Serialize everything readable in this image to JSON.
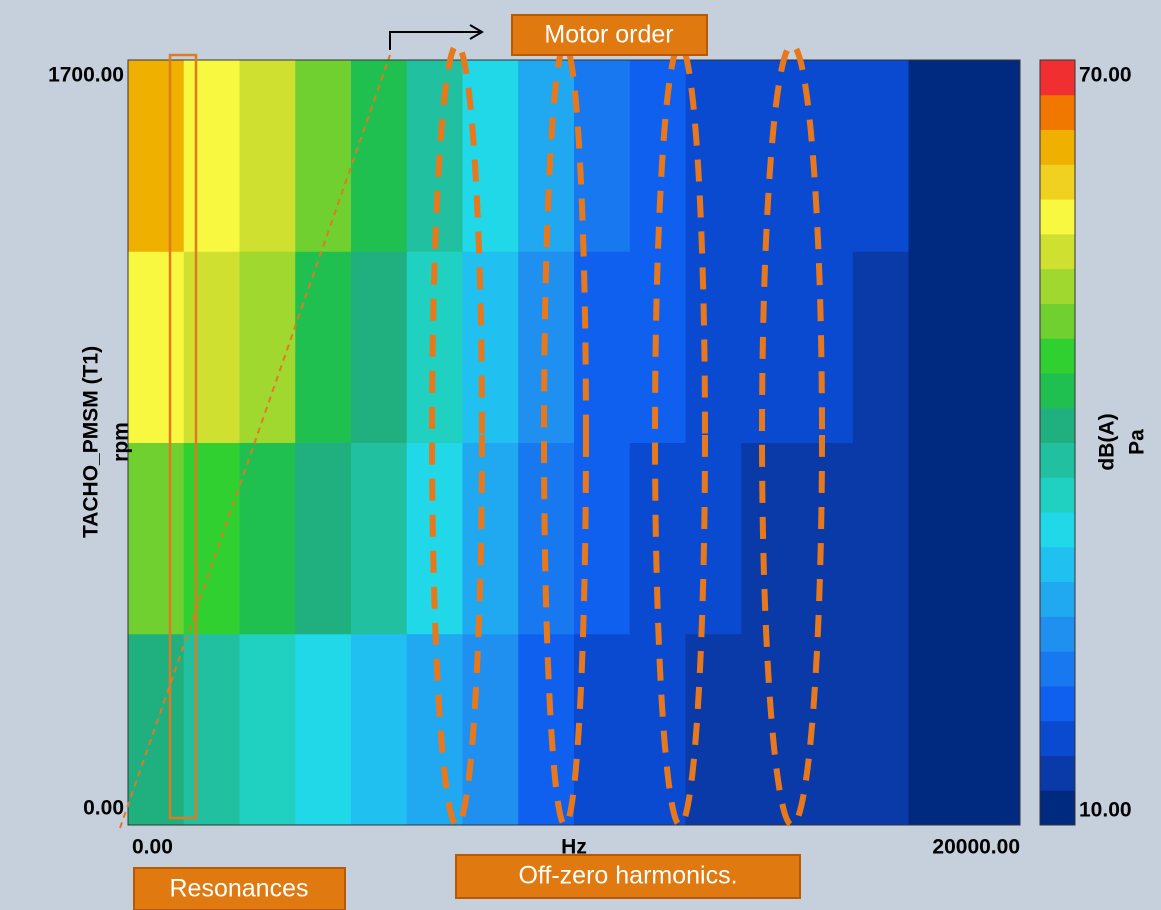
{
  "chart_data": {
    "type": "heatmap",
    "x_label": "Hz",
    "y_label": "TACHO_PMSM (T1)",
    "y_unit": "rpm",
    "colorbar_label": "dB(A)",
    "colorbar_unit": "Pa",
    "xlim": [
      0,
      20000
    ],
    "xticks": [
      {
        "value": 0,
        "label": "0.00"
      },
      {
        "value": 20000,
        "label": "20000.00"
      }
    ],
    "ylim": [
      0,
      1700
    ],
    "yticks": [
      {
        "value": 0,
        "label": "0.00"
      },
      {
        "value": 1700,
        "label": "1700.00"
      }
    ],
    "zlim": [
      10,
      70
    ],
    "zticks": [
      {
        "value": 10,
        "label": "10.00"
      },
      {
        "value": 70,
        "label": "70.00"
      }
    ],
    "colors": [
      "#002a80",
      "#0a3aa8",
      "#0a4ad0",
      "#1060f0",
      "#1878f0",
      "#1f90f0",
      "#20a8f0",
      "#20c0f0",
      "#20d8e8",
      "#20d0c0",
      "#20c0a0",
      "#20b080",
      "#20c050",
      "#30d030",
      "#70d030",
      "#a0d830",
      "#d0e030",
      "#f8f840",
      "#f0d020",
      "#f0b000",
      "#f07800",
      "#f03030"
    ],
    "x_bins": [
      0,
      1250,
      2500,
      3750,
      5000,
      6250,
      7500,
      8750,
      10000,
      11250,
      12500,
      13750,
      15000,
      16250,
      17500,
      18750,
      20000
    ],
    "y_bins": [
      0,
      425,
      850,
      1275,
      1700
    ],
    "z": [
      [
        40,
        38,
        36,
        33,
        30,
        28,
        24,
        20,
        17,
        16,
        15,
        14,
        14,
        13,
        12,
        11
      ],
      [
        50,
        47,
        45,
        40,
        38,
        32,
        28,
        22,
        19,
        18,
        16,
        15,
        15,
        14,
        12,
        11
      ],
      [
        58,
        55,
        52,
        45,
        42,
        36,
        30,
        26,
        20,
        19,
        17,
        16,
        16,
        15,
        12,
        11
      ],
      [
        62,
        58,
        55,
        50,
        45,
        38,
        32,
        28,
        22,
        20,
        18,
        17,
        17,
        16,
        12,
        11
      ]
    ],
    "annotations": [
      "Motor order",
      "Off-zero harmonics.",
      "Resonances"
    ]
  }
}
